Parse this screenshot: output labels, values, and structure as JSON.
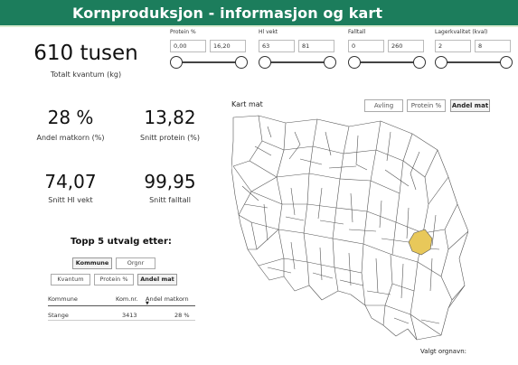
{
  "header": {
    "title": "Kornproduksjon - informasjon og kart"
  },
  "slicers": [
    {
      "label": "Protein %",
      "min": "0,00",
      "max": "16,20"
    },
    {
      "label": "Hl vekt",
      "min": "63",
      "max": "81"
    },
    {
      "label": "Falltall",
      "min": "0",
      "max": "260"
    },
    {
      "label": "Lagerkvalitet (kval)",
      "min": "2",
      "max": "8"
    }
  ],
  "kpis": {
    "total": {
      "value": "610 tusen",
      "label": "Totalt kvantum (kg)"
    },
    "matkorn": {
      "value": "28 %",
      "label": "Andel matkorn (%)"
    },
    "protein": {
      "value": "13,82",
      "label": "Snitt protein (%)"
    },
    "hlvekt": {
      "value": "74,07",
      "label": "Snitt Hl vekt"
    },
    "falltall": {
      "value": "99,95",
      "label": "Snitt falltall"
    }
  },
  "top5": {
    "title": "Topp 5 utvalg etter:",
    "group_buttons": [
      "Kommune",
      "Orgnr"
    ],
    "measure_buttons": [
      "Kvantum",
      "Protein %",
      "Andel mat"
    ],
    "columns": [
      "Kommune",
      "Kom.nr.",
      "Andel matkorn"
    ],
    "rows": [
      {
        "kommune": "Stange",
        "komnr": "3413",
        "andel": "28 %"
      }
    ]
  },
  "map": {
    "title": "Kart mat",
    "buttons": [
      "Avling",
      "Protein %",
      "Andel mat"
    ],
    "highlight_color": "#e8c85a",
    "footer": "Valgt orgnavn:"
  },
  "colors": {
    "header": "#1c7d5c",
    "accent_text": "#ffffff"
  }
}
